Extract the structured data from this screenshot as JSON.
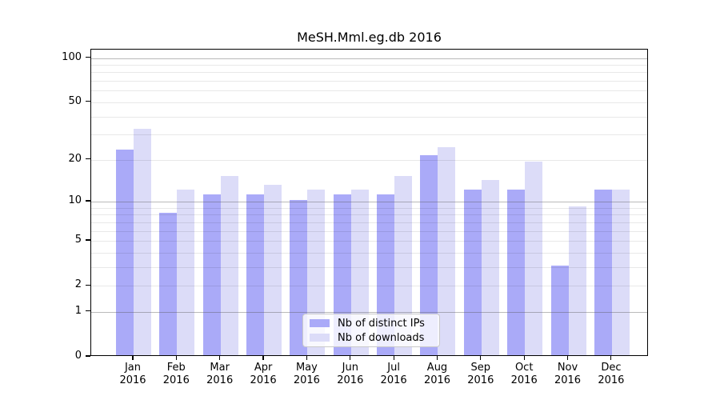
{
  "chart_data": {
    "type": "bar",
    "title": "MeSH.Mml.eg.db 2016",
    "categories": [
      "Jan 2016",
      "Feb 2016",
      "Mar 2016",
      "Apr 2016",
      "May 2016",
      "Jun 2016",
      "Jul 2016",
      "Aug 2016",
      "Sep 2016",
      "Oct 2016",
      "Nov 2016",
      "Dec 2016"
    ],
    "categories_month": [
      "Jan",
      "Feb",
      "Mar",
      "Apr",
      "May",
      "Jun",
      "Jul",
      "Aug",
      "Sep",
      "Oct",
      "Nov",
      "Dec"
    ],
    "categories_year": "2016",
    "series": [
      {
        "name": "Nb of distinct IPs",
        "color": "#aaaaf8",
        "values": [
          23,
          8,
          11,
          11,
          10,
          11,
          11,
          21,
          12,
          12,
          3,
          12
        ]
      },
      {
        "name": "Nb of downloads",
        "color": "#dcdcf8",
        "values": [
          32,
          12,
          15,
          13,
          12,
          12,
          15,
          24,
          14,
          19,
          9,
          12
        ]
      }
    ],
    "y_axis": {
      "scale": "log1p",
      "labeled_ticks": [
        0,
        1,
        2,
        5,
        10,
        20,
        50,
        100
      ],
      "strong_gridlines": [
        1,
        10,
        100
      ],
      "light_gridlines": [
        2,
        3,
        4,
        5,
        6,
        7,
        8,
        9,
        20,
        30,
        40,
        50,
        60,
        70,
        80,
        90
      ],
      "range": [
        0,
        114
      ]
    },
    "grid": true,
    "legend_position": "lower-center"
  }
}
